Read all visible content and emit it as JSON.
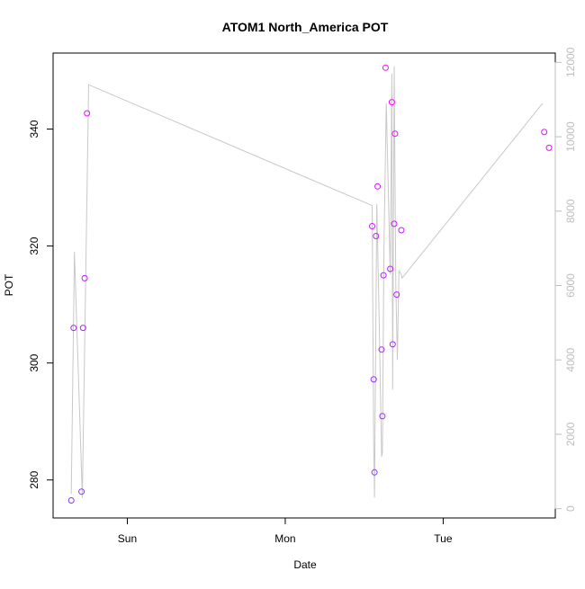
{
  "chart_data": {
    "type": "scatter",
    "title": "ATOM1 North_America POT",
    "xlabel": "Date",
    "ylabel": "POT",
    "x_ticks": [
      {
        "label": "Sun",
        "value": 1.0
      },
      {
        "label": "Mon",
        "value": 2.0
      },
      {
        "label": "Tue",
        "value": 3.0
      }
    ],
    "xlim": [
      0.53,
      3.71
    ],
    "ylim": [
      273.5,
      353.0
    ],
    "y_ticks": [
      280,
      300,
      320,
      340
    ],
    "y2lim": [
      -250,
      12250
    ],
    "y2_ticks": [
      0,
      2000,
      4000,
      6000,
      8000,
      10000,
      12000
    ],
    "grid": false,
    "colors": {
      "line": "#c8c8c8",
      "point_low": "#7a3cff",
      "point_high": "#ff00ff",
      "secondary_axis": "#bdbdbd",
      "axis": "#000000"
    },
    "series": [
      {
        "type": "scatter",
        "points": [
          {
            "x": 0.645,
            "y": 276.5
          },
          {
            "x": 0.66,
            "y": 306.0
          },
          {
            "x": 0.71,
            "y": 278.0
          },
          {
            "x": 0.72,
            "y": 306.0
          },
          {
            "x": 0.73,
            "y": 314.5
          },
          {
            "x": 0.745,
            "y": 342.7
          },
          {
            "x": 2.55,
            "y": 323.4
          },
          {
            "x": 2.56,
            "y": 297.2
          },
          {
            "x": 2.565,
            "y": 281.3
          },
          {
            "x": 2.575,
            "y": 321.7
          },
          {
            "x": 2.585,
            "y": 330.2
          },
          {
            "x": 2.61,
            "y": 302.3
          },
          {
            "x": 2.615,
            "y": 290.9
          },
          {
            "x": 2.622,
            "y": 315.0
          },
          {
            "x": 2.635,
            "y": 350.5
          },
          {
            "x": 2.665,
            "y": 316.1
          },
          {
            "x": 2.675,
            "y": 344.6
          },
          {
            "x": 2.68,
            "y": 303.2
          },
          {
            "x": 2.69,
            "y": 323.8
          },
          {
            "x": 2.695,
            "y": 339.2
          },
          {
            "x": 2.705,
            "y": 311.7
          },
          {
            "x": 2.735,
            "y": 322.7
          },
          {
            "x": 3.64,
            "y": 339.5
          },
          {
            "x": 3.67,
            "y": 336.8
          }
        ]
      },
      {
        "type": "line",
        "axis": "secondary",
        "points": [
          {
            "x": 0.645,
            "y": 400
          },
          {
            "x": 0.665,
            "y": 6900
          },
          {
            "x": 0.715,
            "y": 300
          },
          {
            "x": 0.755,
            "y": 11400
          },
          {
            "x": 2.55,
            "y": 8150
          },
          {
            "x": 2.56,
            "y": 1800
          },
          {
            "x": 2.565,
            "y": 300
          },
          {
            "x": 2.58,
            "y": 8200
          },
          {
            "x": 2.595,
            "y": 5100
          },
          {
            "x": 2.61,
            "y": 1400
          },
          {
            "x": 2.615,
            "y": 1500
          },
          {
            "x": 2.625,
            "y": 7000
          },
          {
            "x": 2.64,
            "y": 10900
          },
          {
            "x": 2.665,
            "y": 6300
          },
          {
            "x": 2.675,
            "y": 11700
          },
          {
            "x": 2.68,
            "y": 3200
          },
          {
            "x": 2.69,
            "y": 11900
          },
          {
            "x": 2.7,
            "y": 6000
          },
          {
            "x": 2.71,
            "y": 4000
          },
          {
            "x": 2.72,
            "y": 6400
          },
          {
            "x": 2.735,
            "y": 6300
          },
          {
            "x": 2.74,
            "y": 6200
          },
          {
            "x": 3.63,
            "y": 10900
          }
        ]
      }
    ]
  }
}
